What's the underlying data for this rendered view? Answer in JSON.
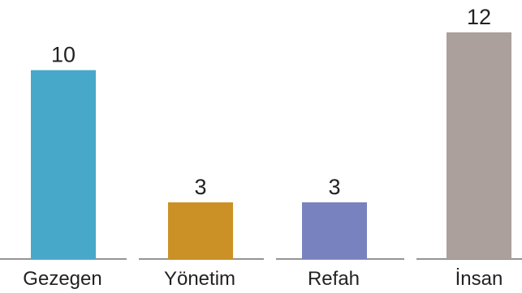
{
  "chart_data": {
    "type": "bar",
    "categories": [
      "Gezegen",
      "Yönetim",
      "Refah",
      "İnsan"
    ],
    "values": [
      10,
      3,
      3,
      12
    ],
    "colors": [
      "#47a8c9",
      "#cc9126",
      "#7882be",
      "#aba09b"
    ],
    "title": "",
    "xlabel": "",
    "ylabel": "",
    "ylim": [
      0,
      12
    ],
    "grid": false,
    "legend": "none",
    "data_labels": [
      "10",
      "3",
      "3",
      "12"
    ]
  }
}
